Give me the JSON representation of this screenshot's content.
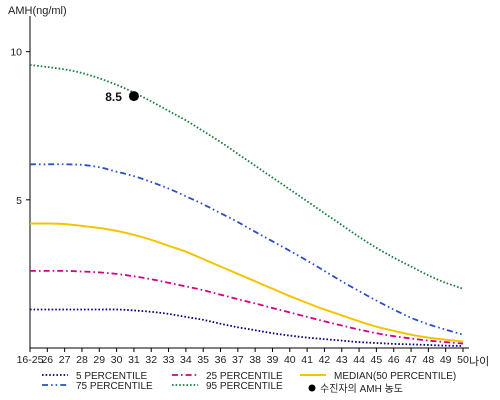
{
  "chart_data": {
    "type": "line",
    "ylabel": "AMH(ng/ml)",
    "xlabel": "나이",
    "ylim": [
      0,
      11
    ],
    "y_ticks": [
      5,
      10
    ],
    "x": [
      "16-25",
      "26",
      "27",
      "28",
      "29",
      "30",
      "31",
      "32",
      "33",
      "34",
      "35",
      "36",
      "37",
      "38",
      "39",
      "40",
      "41",
      "42",
      "43",
      "44",
      "45",
      "46",
      "47",
      "48",
      "49",
      "50"
    ],
    "series": [
      {
        "name": "5 PERCENTILE",
        "color": "#000080",
        "style": "dotted",
        "values": [
          1.3,
          1.3,
          1.3,
          1.3,
          1.3,
          1.3,
          1.27,
          1.22,
          1.15,
          1.05,
          0.95,
          0.82,
          0.7,
          0.6,
          0.5,
          0.42,
          0.35,
          0.3,
          0.25,
          0.2,
          0.17,
          0.14,
          0.12,
          0.1,
          0.08,
          0.07
        ]
      },
      {
        "name": "25 PERCENTILE",
        "color": "#d0008a",
        "style": "dashdot",
        "values": [
          2.6,
          2.6,
          2.6,
          2.58,
          2.55,
          2.5,
          2.42,
          2.32,
          2.2,
          2.08,
          1.95,
          1.8,
          1.65,
          1.5,
          1.35,
          1.2,
          1.05,
          0.9,
          0.76,
          0.62,
          0.5,
          0.4,
          0.32,
          0.25,
          0.2,
          0.15
        ]
      },
      {
        "name": "MEDIAN(50 PERCENTILE)",
        "color": "#f5c400",
        "style": "solid",
        "values": [
          4.2,
          4.2,
          4.18,
          4.12,
          4.05,
          3.95,
          3.82,
          3.65,
          3.45,
          3.25,
          3.0,
          2.75,
          2.5,
          2.25,
          2.0,
          1.75,
          1.52,
          1.3,
          1.1,
          0.9,
          0.72,
          0.58,
          0.45,
          0.35,
          0.28,
          0.22
        ]
      },
      {
        "name": "75 PERCENTILE",
        "color": "#2a4fc4",
        "style": "dashdotdot",
        "values": [
          6.2,
          6.2,
          6.2,
          6.18,
          6.1,
          5.95,
          5.8,
          5.6,
          5.38,
          5.12,
          4.85,
          4.55,
          4.25,
          3.92,
          3.6,
          3.28,
          2.95,
          2.6,
          2.25,
          1.92,
          1.6,
          1.3,
          1.02,
          0.8,
          0.62,
          0.45
        ]
      },
      {
        "name": "95 PERCENTILE",
        "color": "#1a7a3a",
        "style": "dotted",
        "values": [
          9.55,
          9.48,
          9.4,
          9.28,
          9.1,
          8.88,
          8.62,
          8.32,
          8.0,
          7.68,
          7.32,
          6.95,
          6.55,
          6.15,
          5.75,
          5.35,
          4.95,
          4.55,
          4.15,
          3.75,
          3.38,
          3.05,
          2.75,
          2.45,
          2.2,
          2.0
        ]
      }
    ],
    "marker": {
      "label": "수진자의 AMH 농도",
      "x": "31",
      "value": 8.5,
      "text": "8.5",
      "color": "#000000"
    }
  }
}
